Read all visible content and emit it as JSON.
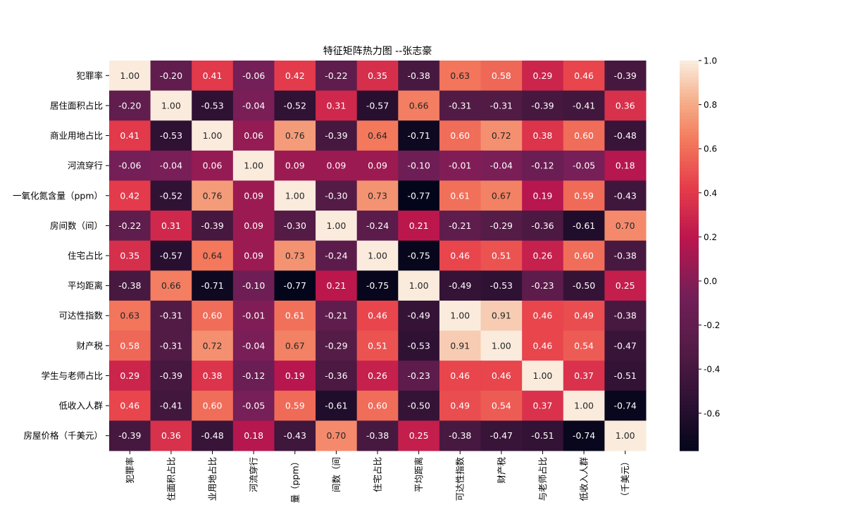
{
  "chart_data": {
    "type": "heatmap",
    "title": "特征矩阵热力图 --张志豪",
    "rows": [
      "犯罪率",
      "居住面积占比",
      "商业用地占比",
      "河流穿行",
      "一氧化氮含量（ppm）",
      "房间数（间）",
      "住宅占比",
      "平均距离",
      "可达性指数",
      "财产税",
      "学生与老师占比",
      "低收入人群",
      "房屋价格（千美元）"
    ],
    "cols": [
      "犯罪率",
      "住面积占比",
      "业用地占比",
      "河流穿行",
      "量（ppm）",
      "间数（间",
      "住宅占比",
      "平均距离",
      "可达性指数",
      "财产税",
      "与老师占比",
      "低收入人群",
      "（千美元）"
    ],
    "values": [
      [
        1.0,
        -0.2,
        0.41,
        -0.06,
        0.42,
        -0.22,
        0.35,
        -0.38,
        0.63,
        0.58,
        0.29,
        0.46,
        -0.39
      ],
      [
        -0.2,
        1.0,
        -0.53,
        -0.04,
        -0.52,
        0.31,
        -0.57,
        0.66,
        -0.31,
        -0.31,
        -0.39,
        -0.41,
        0.36
      ],
      [
        0.41,
        -0.53,
        1.0,
        0.06,
        0.76,
        -0.39,
        0.64,
        -0.71,
        0.6,
        0.72,
        0.38,
        0.6,
        -0.48
      ],
      [
        -0.06,
        -0.04,
        0.06,
        1.0,
        0.09,
        0.09,
        0.09,
        -0.1,
        -0.01,
        -0.04,
        -0.12,
        -0.05,
        0.18
      ],
      [
        0.42,
        -0.52,
        0.76,
        0.09,
        1.0,
        -0.3,
        0.73,
        -0.77,
        0.61,
        0.67,
        0.19,
        0.59,
        -0.43
      ],
      [
        -0.22,
        0.31,
        -0.39,
        0.09,
        -0.3,
        1.0,
        -0.24,
        0.21,
        -0.21,
        -0.29,
        -0.36,
        -0.61,
        0.7
      ],
      [
        0.35,
        -0.57,
        0.64,
        0.09,
        0.73,
        -0.24,
        1.0,
        -0.75,
        0.46,
        0.51,
        0.26,
        0.6,
        -0.38
      ],
      [
        -0.38,
        0.66,
        -0.71,
        -0.1,
        -0.77,
        0.21,
        -0.75,
        1.0,
        -0.49,
        -0.53,
        -0.23,
        -0.5,
        0.25
      ],
      [
        0.63,
        -0.31,
        0.6,
        -0.01,
        0.61,
        -0.21,
        0.46,
        -0.49,
        1.0,
        0.91,
        0.46,
        0.49,
        -0.38
      ],
      [
        0.58,
        -0.31,
        0.72,
        -0.04,
        0.67,
        -0.29,
        0.51,
        -0.53,
        0.91,
        1.0,
        0.46,
        0.54,
        -0.47
      ],
      [
        0.29,
        -0.39,
        0.38,
        -0.12,
        0.19,
        -0.36,
        0.26,
        -0.23,
        0.46,
        0.46,
        1.0,
        0.37,
        -0.51
      ],
      [
        0.46,
        -0.41,
        0.6,
        -0.05,
        0.59,
        -0.61,
        0.6,
        -0.5,
        0.49,
        0.54,
        0.37,
        1.0,
        -0.74
      ],
      [
        -0.39,
        0.36,
        -0.48,
        0.18,
        -0.43,
        0.7,
        -0.38,
        0.25,
        -0.38,
        -0.47,
        -0.51,
        -0.74,
        1.0
      ]
    ],
    "colorbar": {
      "vmin": -0.77,
      "vmax": 1.0,
      "ticks": [
        1.0,
        0.8,
        0.6,
        0.4,
        0.2,
        0.0,
        -0.2,
        -0.4,
        -0.6
      ],
      "tick_labels": [
        "1.0",
        "0.8",
        "0.6",
        "0.4",
        "0.2",
        "0.0",
        "-0.2",
        "-0.4",
        "-0.6"
      ]
    },
    "colormap": "rocket",
    "annotate": true,
    "value_format": "2 decimals"
  }
}
